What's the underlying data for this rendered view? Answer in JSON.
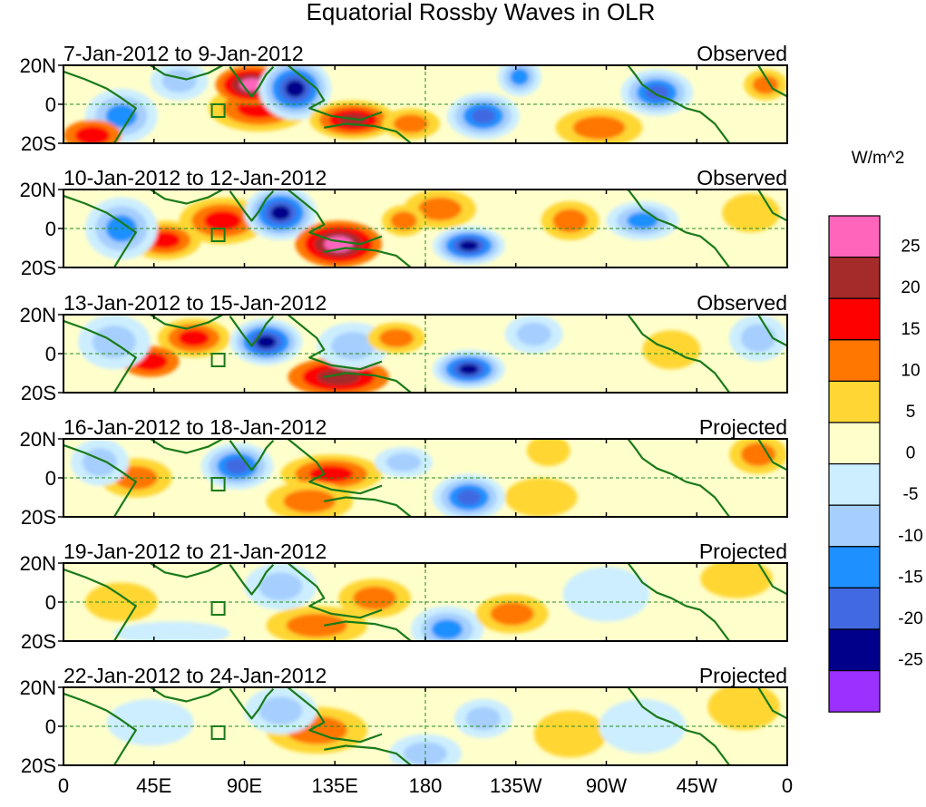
{
  "title": "Equatorial Rossby Waves in OLR",
  "units": "W/m^2",
  "lat_labels": [
    "20N",
    "0",
    "20S"
  ],
  "lon_labels": [
    "0",
    "45E",
    "90E",
    "135E",
    "180",
    "135W",
    "90W",
    "45W",
    "0"
  ],
  "panels": [
    {
      "dates": "7-Jan-2012 to 9-Jan-2012",
      "status": "Observed"
    },
    {
      "dates": "10-Jan-2012 to 12-Jan-2012",
      "status": "Observed"
    },
    {
      "dates": "13-Jan-2012 to 15-Jan-2012",
      "status": "Observed"
    },
    {
      "dates": "16-Jan-2012 to 18-Jan-2012",
      "status": "Projected"
    },
    {
      "dates": "19-Jan-2012 to 21-Jan-2012",
      "status": "Projected"
    },
    {
      "dates": "22-Jan-2012 to 24-Jan-2012",
      "status": "Projected"
    }
  ],
  "colorbar": {
    "bins": [
      {
        "color": "#ff66bb"
      },
      {
        "color": "#a52a2a"
      },
      {
        "color": "#ff0000"
      },
      {
        "color": "#ff7700"
      },
      {
        "color": "#ffd633"
      },
      {
        "color": "#ffffcc"
      },
      {
        "color": "#cceeff"
      },
      {
        "color": "#a6cfff"
      },
      {
        "color": "#1e90ff"
      },
      {
        "color": "#4169e1"
      },
      {
        "color": "#00008b"
      },
      {
        "color": "#9b30ff"
      }
    ],
    "tick_labels": [
      "25",
      "20",
      "15",
      "10",
      "5",
      "0",
      "-5",
      "-10",
      "-15",
      "-20",
      "-25"
    ]
  },
  "colors": {
    "coastline": "#1a7a1a",
    "equator_line": "#228b22",
    "background": "#ffffcc"
  }
}
